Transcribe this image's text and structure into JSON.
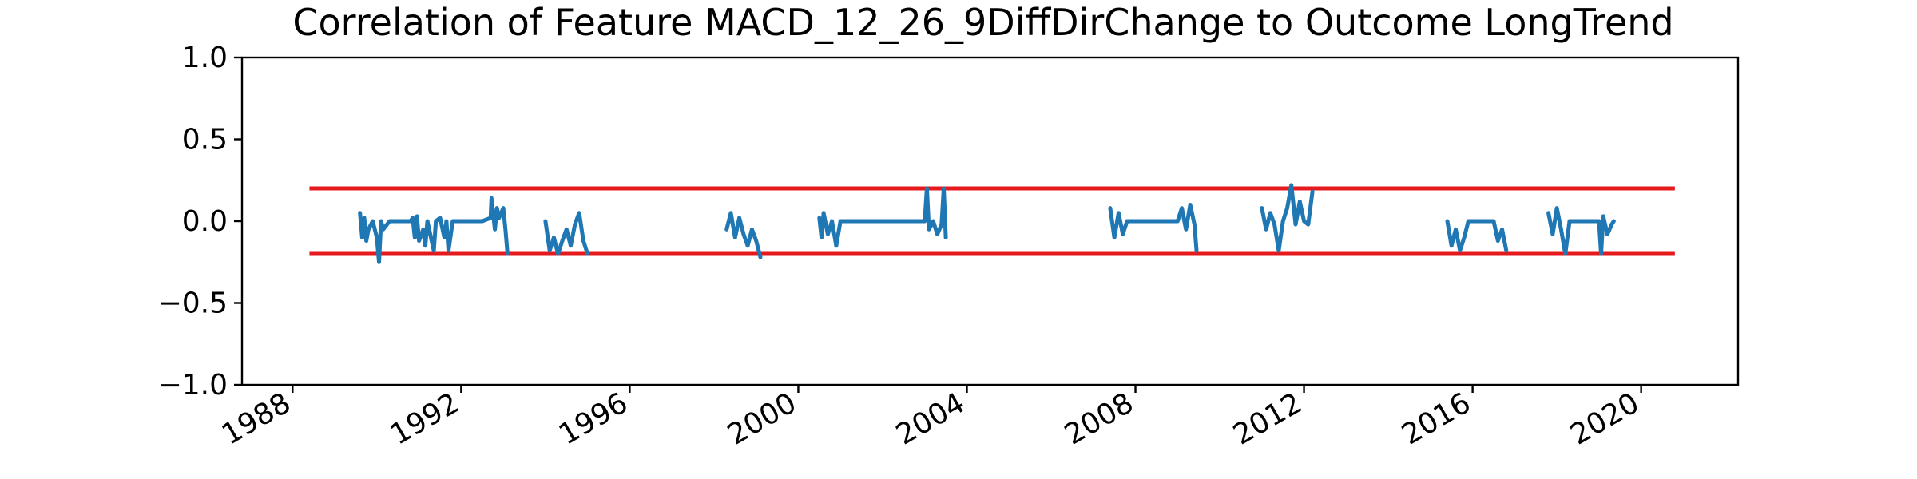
{
  "chart_data": {
    "type": "line",
    "title": "Correlation of Feature MACD_12_26_9DiffDirChange to Outcome LongTrend",
    "xlabel": "",
    "ylabel": "",
    "xlim": [
      1986.8,
      2022.3
    ],
    "ylim": [
      -1.0,
      1.0
    ],
    "x_ticks": [
      1988,
      1992,
      1996,
      2000,
      2004,
      2008,
      2012,
      2016,
      2020
    ],
    "y_ticks": [
      -1.0,
      -0.5,
      0.0,
      0.5,
      1.0
    ],
    "y_tick_labels": [
      "−1.0",
      "−0.5",
      "0.0",
      "0.5",
      "1.0"
    ],
    "grid": false,
    "colors": {
      "series": "#1f77b4",
      "threshold": "#e41a1c"
    },
    "thresholds": [
      {
        "y": 0.2,
        "x": [
          1988.4,
          2020.8
        ]
      },
      {
        "y": -0.2,
        "x": [
          1988.4,
          2020.8
        ]
      }
    ],
    "segments": [
      {
        "x": [
          1989.6,
          1989.65,
          1989.7,
          1989.75,
          1989.8,
          1989.9,
          1990.0,
          1990.05,
          1990.1,
          1990.15,
          1990.3,
          1990.8,
          1990.85,
          1990.9,
          1990.95,
          1991.0,
          1991.1,
          1991.15,
          1991.2,
          1991.3,
          1991.35,
          1991.4,
          1991.5,
          1991.6,
          1991.65,
          1991.7,
          1991.8,
          1992.5,
          1992.7,
          1992.72,
          1992.8,
          1992.85,
          1992.9,
          1992.95,
          1993.0,
          1993.05,
          1993.1
        ],
        "y": [
          0.05,
          -0.1,
          0.02,
          -0.12,
          -0.05,
          0.0,
          -0.1,
          -0.25,
          0.0,
          -0.05,
          0.0,
          0.0,
          0.02,
          -0.1,
          0.03,
          -0.12,
          -0.05,
          -0.15,
          0.0,
          -0.12,
          -0.18,
          0.0,
          0.02,
          -0.1,
          0.0,
          -0.18,
          0.0,
          0.0,
          0.02,
          0.14,
          -0.05,
          0.08,
          0.02,
          0.05,
          0.08,
          -0.05,
          -0.2
        ]
      },
      {
        "x": [
          1994.0,
          1994.1,
          1994.2,
          1994.3,
          1994.4,
          1994.5,
          1994.6,
          1994.7,
          1994.8,
          1994.9,
          1995.0
        ],
        "y": [
          0.0,
          -0.18,
          -0.1,
          -0.2,
          -0.12,
          -0.05,
          -0.15,
          -0.02,
          0.05,
          -0.12,
          -0.2
        ]
      },
      {
        "x": [
          1998.3,
          1998.4,
          1998.5,
          1998.6,
          1998.7,
          1998.8,
          1998.9,
          1999.0,
          1999.1
        ],
        "y": [
          -0.05,
          0.05,
          -0.1,
          0.02,
          -0.08,
          -0.15,
          -0.05,
          -0.12,
          -0.22
        ]
      },
      {
        "x": [
          2000.5,
          2000.55,
          2000.6,
          2000.7,
          2000.8,
          2000.9,
          2001.0,
          2003.0,
          2003.05,
          2003.1,
          2003.2,
          2003.3,
          2003.4,
          2003.45,
          2003.5
        ],
        "y": [
          0.02,
          -0.1,
          0.05,
          -0.08,
          0.0,
          -0.15,
          0.0,
          0.0,
          0.2,
          -0.05,
          0.0,
          -0.08,
          -0.02,
          0.2,
          -0.1
        ]
      },
      {
        "x": [
          2007.4,
          2007.5,
          2007.6,
          2007.7,
          2007.8,
          2009.0,
          2009.1,
          2009.2,
          2009.3,
          2009.4,
          2009.45
        ],
        "y": [
          0.08,
          -0.1,
          0.05,
          -0.08,
          0.0,
          0.0,
          0.08,
          -0.05,
          0.1,
          -0.02,
          -0.18
        ]
      },
      {
        "x": [
          2011.0,
          2011.1,
          2011.2,
          2011.3,
          2011.4,
          2011.5,
          2011.6,
          2011.7,
          2011.8,
          2011.9,
          2012.0,
          2012.1,
          2012.2
        ],
        "y": [
          0.08,
          -0.05,
          0.05,
          -0.02,
          -0.18,
          0.0,
          0.08,
          0.22,
          -0.02,
          0.12,
          0.0,
          -0.02,
          0.18
        ]
      },
      {
        "x": [
          2015.4,
          2015.5,
          2015.6,
          2015.7,
          2015.8,
          2015.9,
          2016.5,
          2016.6,
          2016.7,
          2016.8
        ],
        "y": [
          0.0,
          -0.15,
          -0.05,
          -0.18,
          -0.1,
          0.0,
          0.0,
          -0.12,
          -0.05,
          -0.18
        ]
      },
      {
        "x": [
          2017.8,
          2017.9,
          2018.0,
          2018.1,
          2018.2,
          2018.3,
          2018.4,
          2019.0,
          2019.05,
          2019.1,
          2019.2,
          2019.3,
          2019.35
        ],
        "y": [
          0.05,
          -0.08,
          0.08,
          -0.05,
          -0.2,
          0.0,
          0.0,
          0.0,
          -0.2,
          0.03,
          -0.08,
          -0.02,
          0.0
        ]
      }
    ]
  }
}
